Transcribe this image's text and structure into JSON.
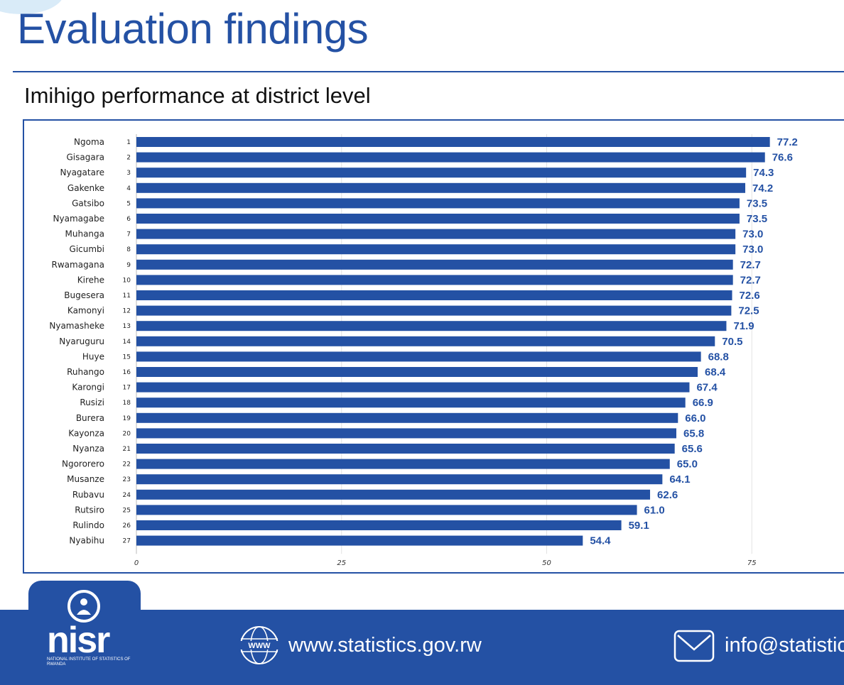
{
  "page": {
    "title": "Evaluation findings",
    "subtitle": "Imihigo performance at district level"
  },
  "chart_data": {
    "type": "bar",
    "orientation": "horizontal",
    "title": "Imihigo performance at district level",
    "xlabel": "",
    "ylabel": "",
    "xlim": [
      0,
      75
    ],
    "x_ticks": [
      0,
      25,
      50,
      75
    ],
    "grid": true,
    "bar_color": "#2451a4",
    "label_color": "#2451a4",
    "ranks": [
      1,
      2,
      3,
      4,
      5,
      6,
      7,
      8,
      9,
      10,
      11,
      12,
      13,
      14,
      15,
      16,
      17,
      18,
      19,
      20,
      21,
      22,
      23,
      24,
      25,
      26,
      27
    ],
    "categories": [
      "Ngoma",
      "Gisagara",
      "Nyagatare",
      "Gakenke",
      "Gatsibo",
      "Nyamagabe",
      "Muhanga",
      "Gicumbi",
      "Rwamagana",
      "Kirehe",
      "Bugesera",
      "Kamonyi",
      "Nyamasheke",
      "Nyaruguru",
      "Huye",
      "Ruhango",
      "Karongi",
      "Rusizi",
      "Burera",
      "Kayonza",
      "Nyanza",
      "Ngororero",
      "Musanze",
      "Rubavu",
      "Rutsiro",
      "Rulindo",
      "Nyabihu"
    ],
    "values": [
      77.2,
      76.6,
      74.3,
      74.2,
      73.5,
      73.5,
      73.0,
      73.0,
      72.7,
      72.7,
      72.6,
      72.5,
      71.9,
      70.5,
      68.8,
      68.4,
      67.4,
      66.9,
      66.0,
      65.8,
      65.6,
      65.0,
      64.1,
      62.6,
      61.0,
      59.1,
      54.4
    ],
    "value_labels": [
      "77.2",
      "76.6",
      "74.3",
      "74.2",
      "73.5",
      "73.5",
      "73.0",
      "73.0",
      "72.7",
      "72.7",
      "72.6",
      "72.5",
      "71.9",
      "70.5",
      "68.8",
      "68.4",
      "67.4",
      "66.9",
      "66.0",
      "65.8",
      "65.6",
      "65.0",
      "64.1",
      "62.6",
      "61.0",
      "59.1",
      "54.4"
    ]
  },
  "footer": {
    "logo_text": "nisr",
    "logo_subtext": "National Institute of Statistics of Rwanda",
    "website": "www.statistics.gov.rw",
    "website_icon_text": "WWW",
    "email": "info@statistic",
    "colors": {
      "brand": "#2451a4"
    }
  }
}
